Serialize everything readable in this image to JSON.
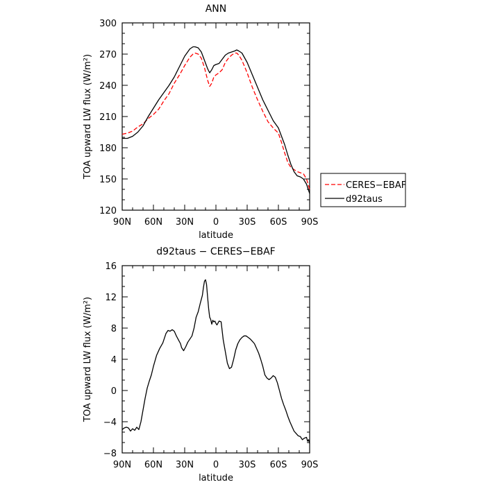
{
  "chart_data": [
    {
      "type": "line",
      "title": "ANN",
      "xlabel": "latitude",
      "ylabel": "TOA upward LW flux (W/m²)",
      "xlim": [
        90,
        -90
      ],
      "ylim": [
        120,
        300
      ],
      "xticks": [
        90,
        60,
        30,
        0,
        -30,
        -60,
        -90
      ],
      "xtick_labels": [
        "90N",
        "60N",
        "30N",
        "0",
        "30S",
        "60S",
        "90S"
      ],
      "yticks": [
        120,
        150,
        180,
        210,
        240,
        270,
        300
      ],
      "ytick_labels": [
        "120",
        "150",
        "180",
        "210",
        "240",
        "270",
        "300"
      ],
      "grid": false,
      "legend_position": "right, outside plot",
      "series": [
        {
          "name": "CERES−EBAF",
          "color": "#ff0000",
          "dash": "dashed",
          "x": [
            90,
            85,
            80,
            75,
            70,
            65,
            60,
            55,
            50,
            45,
            40,
            35,
            30,
            25,
            22,
            20,
            17,
            14,
            11,
            8,
            6,
            4,
            2,
            0,
            -3,
            -6,
            -9,
            -12,
            -15,
            -18,
            -20,
            -22,
            -25,
            -30,
            -35,
            -40,
            -45,
            -50,
            -55,
            -60,
            -63,
            -66,
            -69,
            -72,
            -75,
            -78,
            -81,
            -84,
            -87,
            -90
          ],
          "y": [
            193,
            194,
            196,
            200,
            203,
            208,
            212,
            217,
            225,
            232,
            242,
            250,
            259,
            267,
            270,
            271,
            270,
            266,
            257,
            245,
            239,
            242,
            248,
            250,
            252,
            255,
            262,
            266,
            269,
            271,
            271,
            269,
            264,
            252,
            238,
            226,
            215,
            205,
            199,
            194,
            185,
            175,
            166,
            161,
            159,
            157,
            156,
            155,
            150,
            140
          ]
        },
        {
          "name": "d92taus",
          "color": "#000000",
          "dash": "solid",
          "x": [
            90,
            85,
            80,
            75,
            70,
            65,
            60,
            55,
            50,
            45,
            40,
            35,
            30,
            25,
            22,
            20,
            17,
            14,
            11,
            8,
            6,
            4,
            2,
            0,
            -3,
            -6,
            -9,
            -12,
            -15,
            -18,
            -20,
            -22,
            -25,
            -30,
            -35,
            -40,
            -45,
            -50,
            -55,
            -60,
            -63,
            -66,
            -69,
            -72,
            -75,
            -78,
            -81,
            -84,
            -87,
            -90
          ],
          "y": [
            189,
            189,
            191,
            195,
            201,
            210,
            218,
            226,
            233,
            240,
            248,
            258,
            268,
            275,
            277,
            277,
            276,
            272,
            264,
            256,
            252,
            255,
            259,
            260,
            261,
            265,
            269,
            271,
            272,
            273,
            274,
            273,
            271,
            262,
            250,
            238,
            226,
            216,
            206,
            199,
            191,
            183,
            173,
            164,
            157,
            153,
            152,
            150,
            145,
            136
          ]
        }
      ]
    },
    {
      "type": "line",
      "title": "d92taus − CERES−EBAF",
      "xlabel": "latitude",
      "ylabel": "TOA upward LW flux (W/m²)",
      "xlim": [
        90,
        -90
      ],
      "ylim": [
        -8,
        16
      ],
      "xticks": [
        90,
        60,
        30,
        0,
        -30,
        -60,
        -90
      ],
      "xtick_labels": [
        "90N",
        "60N",
        "30N",
        "0",
        "30S",
        "60S",
        "90S"
      ],
      "yticks": [
        -8,
        -4,
        0,
        4,
        8,
        12,
        16
      ],
      "ytick_labels": [
        "−8",
        "−4",
        "0",
        "4",
        "8",
        "12",
        "16"
      ],
      "grid": false,
      "series": [
        {
          "color": "#000000",
          "dash": "solid",
          "x": [
            90,
            88,
            86,
            84,
            82,
            80,
            78,
            76,
            74,
            72,
            70,
            68,
            66,
            64,
            62,
            60,
            57,
            54,
            51,
            48,
            46,
            44,
            42,
            40,
            38,
            36,
            34,
            33,
            31,
            29,
            27,
            25,
            23,
            21,
            19,
            17,
            15,
            13,
            12,
            11,
            10,
            9,
            8,
            7,
            6,
            5,
            4,
            3,
            2,
            1,
            0,
            -1,
            -3,
            -5,
            -7,
            -9,
            -11,
            -13,
            -15,
            -17,
            -19,
            -21,
            -23,
            -25,
            -27,
            -29,
            -31,
            -33,
            -35,
            -37,
            -39,
            -41,
            -43,
            -45,
            -47,
            -49,
            -51,
            -53,
            -55,
            -57,
            -59,
            -61,
            -63,
            -65,
            -67,
            -69,
            -71,
            -73,
            -75,
            -77,
            -79,
            -81,
            -83,
            -85,
            -87,
            -88,
            -89,
            -90
          ],
          "y": [
            -5.0,
            -4.8,
            -4.7,
            -4.8,
            -5.2,
            -4.9,
            -5.1,
            -4.7,
            -5.0,
            -4.0,
            -2.5,
            -1.0,
            0.3,
            1.2,
            2.0,
            3.1,
            4.5,
            5.4,
            6.1,
            7.3,
            7.7,
            7.6,
            7.8,
            7.6,
            7.0,
            6.5,
            6.0,
            5.5,
            5.1,
            5.6,
            6.2,
            6.6,
            7.0,
            8.0,
            9.4,
            10.1,
            11.2,
            12.2,
            13.2,
            14.0,
            14.2,
            13.6,
            12.0,
            10.5,
            9.4,
            9.1,
            8.5,
            9.0,
            8.8,
            8.9,
            8.6,
            8.4,
            8.9,
            8.8,
            6.5,
            5.0,
            3.5,
            2.8,
            3.0,
            4.0,
            5.2,
            6.0,
            6.5,
            6.8,
            7.0,
            7.0,
            6.8,
            6.6,
            6.3,
            6.0,
            5.4,
            4.8,
            4.0,
            3.1,
            2.0,
            1.6,
            1.4,
            1.6,
            1.9,
            1.7,
            1.0,
            0.0,
            -1.0,
            -1.8,
            -2.5,
            -3.3,
            -4.0,
            -4.6,
            -5.2,
            -5.5,
            -5.8,
            -5.9,
            -6.3,
            -6.1,
            -6.0,
            -6.5,
            -6.3,
            -6.8
          ]
        }
      ]
    }
  ]
}
